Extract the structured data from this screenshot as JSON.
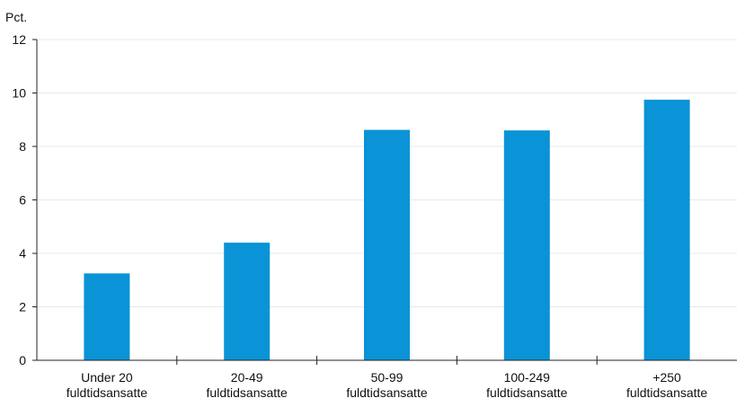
{
  "chart_data": {
    "type": "bar",
    "ylabel": "Pct.",
    "ylim": [
      0,
      12
    ],
    "yticks": [
      0,
      2,
      4,
      6,
      8,
      10,
      12
    ],
    "categories": [
      [
        "Under 20",
        "fuldtidsansatte"
      ],
      [
        "20-49",
        "fuldtidsansatte"
      ],
      [
        "50-99",
        "fuldtidsansatte"
      ],
      [
        "100-249",
        "fuldtidsansatte"
      ],
      [
        "+250",
        "fuldtidsansatte"
      ]
    ],
    "values": [
      3.25,
      4.4,
      8.62,
      8.6,
      9.75
    ],
    "grid": true,
    "colors": {
      "bar": "#0a93d6",
      "grid": "#e8e8e8",
      "axis": "#222222"
    }
  }
}
